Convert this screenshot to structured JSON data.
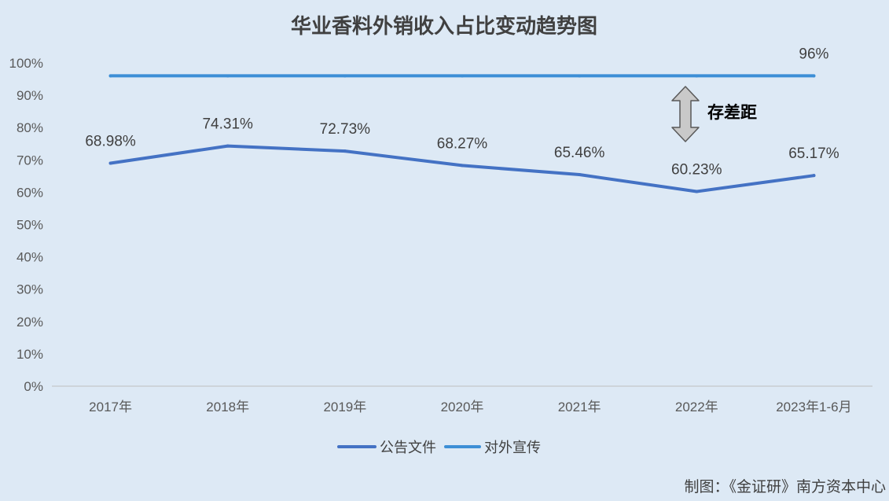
{
  "chart_data": {
    "type": "line",
    "title": "华业香料外销收入占比变动趋势图",
    "categories": [
      "2017年",
      "2018年",
      "2019年",
      "2020年",
      "2021年",
      "2022年",
      "2023年1-6月"
    ],
    "ylim": [
      0,
      100
    ],
    "y_ticks": [
      0,
      10,
      20,
      30,
      40,
      50,
      60,
      70,
      80,
      90,
      100
    ],
    "y_tick_labels": [
      "0%",
      "10%",
      "20%",
      "30%",
      "40%",
      "50%",
      "60%",
      "70%",
      "80%",
      "90%",
      "100%"
    ],
    "grid": false,
    "legend_position": "bottom",
    "series": [
      {
        "name": "公告文件",
        "values": [
          68.98,
          74.31,
          72.73,
          68.27,
          65.46,
          60.23,
          65.17
        ],
        "labels": [
          "68.98%",
          "74.31%",
          "72.73%",
          "68.27%",
          "65.46%",
          "60.23%",
          "65.17%"
        ],
        "color": "#4472c4"
      },
      {
        "name": "对外宣传",
        "values": [
          96,
          96,
          96,
          96,
          96,
          96,
          96
        ],
        "labels": [
          "",
          "",
          "",
          "",
          "",
          "",
          "96%"
        ],
        "color": "#3d8fd6"
      }
    ],
    "annotations": [
      {
        "text": "存差距",
        "icon": "double-arrow-vertical-icon",
        "arrow_color": "#c9c9c9"
      }
    ]
  },
  "credit": "制图：《金证研》南方资本中心",
  "background_color": "#dde9f5"
}
